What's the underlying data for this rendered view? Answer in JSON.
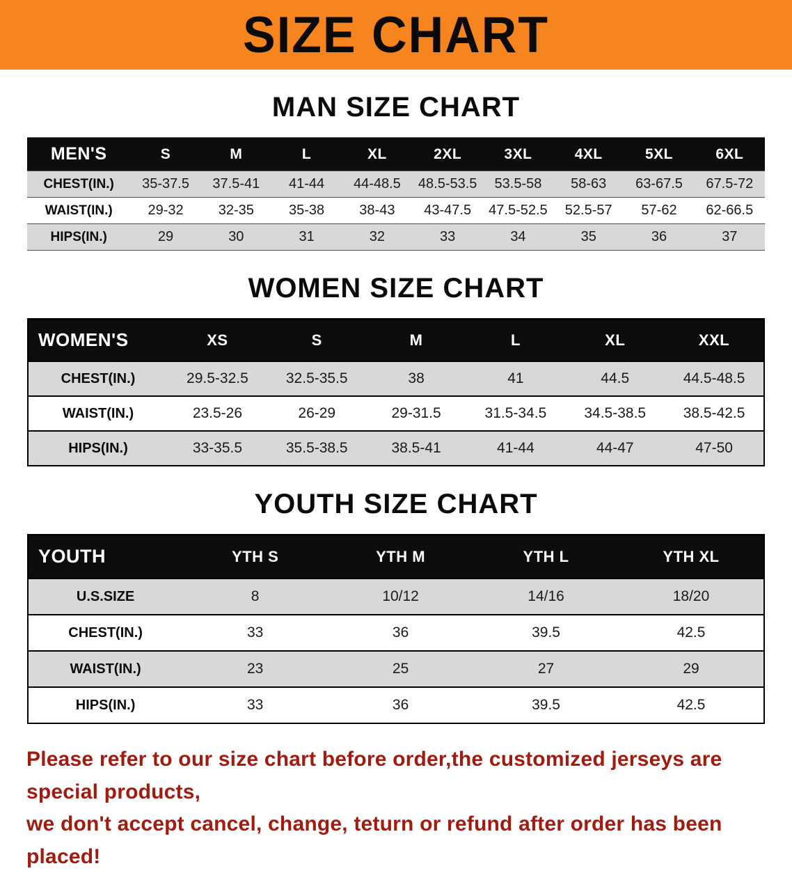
{
  "banner": {
    "title": "SIZE CHART"
  },
  "colors": {
    "banner_bg": "#f6851f",
    "header_bg": "#0d0d0d",
    "stripe": "#d8d8d8",
    "note": "#a21b0e"
  },
  "men": {
    "heading": "MAN SIZE CHART",
    "table": {
      "header": [
        "MEN'S",
        "S",
        "M",
        "L",
        "XL",
        "2XL",
        "3XL",
        "4XL",
        "5XL",
        "6XL"
      ],
      "rows": [
        [
          "CHEST(IN.)",
          "35-37.5",
          "37.5-41",
          "41-44",
          "44-48.5",
          "48.5-53.5",
          "53.5-58",
          "58-63",
          "63-67.5",
          "67.5-72"
        ],
        [
          "WAIST(IN.)",
          "29-32",
          "32-35",
          "35-38",
          "38-43",
          "43-47.5",
          "47.5-52.5",
          "52.5-57",
          "57-62",
          "62-66.5"
        ],
        [
          "HIPS(IN.)",
          "29",
          "30",
          "31",
          "32",
          "33",
          "34",
          "35",
          "36",
          "37"
        ]
      ]
    }
  },
  "women": {
    "heading": "WOMEN SIZE CHART",
    "table": {
      "header": [
        "WOMEN'S",
        "XS",
        "S",
        "M",
        "L",
        "XL",
        "XXL"
      ],
      "rows": [
        [
          "CHEST(IN.)",
          "29.5-32.5",
          "32.5-35.5",
          "38",
          "41",
          "44.5",
          "44.5-48.5"
        ],
        [
          "WAIST(IN.)",
          "23.5-26",
          "26-29",
          "29-31.5",
          "31.5-34.5",
          "34.5-38.5",
          "38.5-42.5"
        ],
        [
          "HIPS(IN.)",
          "33-35.5",
          "35.5-38.5",
          "38.5-41",
          "41-44",
          "44-47",
          "47-50"
        ]
      ]
    }
  },
  "youth": {
    "heading": "YOUTH SIZE CHART",
    "table": {
      "header": [
        "YOUTH",
        "YTH S",
        "YTH M",
        "YTH L",
        "YTH XL"
      ],
      "rows": [
        [
          "U.S.SIZE",
          "8",
          "10/12",
          "14/16",
          "18/20"
        ],
        [
          "CHEST(IN.)",
          "33",
          "36",
          "39.5",
          "42.5"
        ],
        [
          "WAIST(IN.)",
          "23",
          "25",
          "27",
          "29"
        ],
        [
          "HIPS(IN.)",
          "33",
          "36",
          "39.5",
          "42.5"
        ]
      ]
    }
  },
  "note": {
    "line1": "Please refer to our size chart before order,the customized jerseys are special products,",
    "line2": "we don't accept cancel, change, teturn or refund after order has been placed!"
  }
}
